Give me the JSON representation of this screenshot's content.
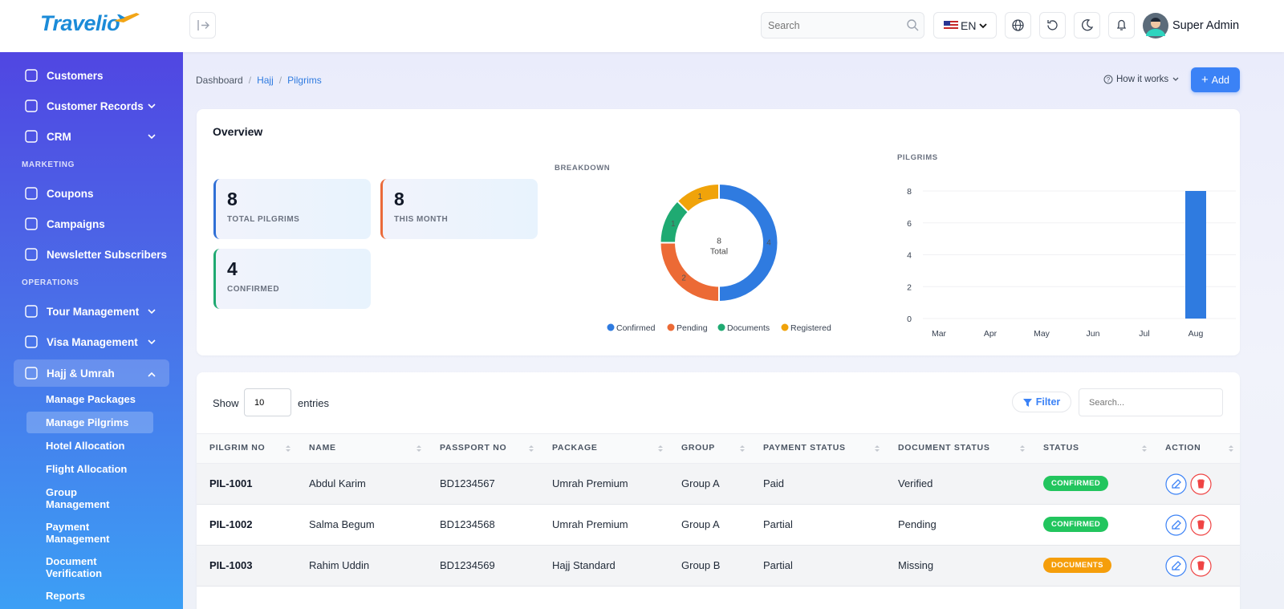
{
  "brand": "Travelio",
  "header": {
    "search_placeholder": "Search",
    "language": "EN",
    "user": "Super Admin"
  },
  "sidebar": {
    "groups": [
      {
        "items": [
          {
            "label": "Customers"
          },
          {
            "label": "Customer Records",
            "expandable": true
          },
          {
            "label": "CRM",
            "expandable": true
          }
        ]
      },
      {
        "title": "MARKETING",
        "items": [
          {
            "label": "Coupons"
          },
          {
            "label": "Campaigns"
          },
          {
            "label": "Newsletter Subscribers"
          }
        ]
      },
      {
        "title": "OPERATIONS",
        "items": [
          {
            "label": "Tour Management",
            "expandable": true
          },
          {
            "label": "Visa Management",
            "expandable": true
          },
          {
            "label": "Hajj & Umrah",
            "expandable": true,
            "expanded": true,
            "active": true,
            "children": [
              {
                "label": "Manage Packages"
              },
              {
                "label": "Manage Pilgrims",
                "active": true
              },
              {
                "label": "Hotel Allocation"
              },
              {
                "label": "Flight Allocation"
              },
              {
                "label": "Group Management"
              },
              {
                "label": "Payment Management"
              },
              {
                "label": "Document Verification"
              },
              {
                "label": "Reports"
              }
            ]
          }
        ]
      }
    ]
  },
  "breadcrumb": [
    "Dashboard",
    "Hajj",
    "Pilgrims"
  ],
  "actions": {
    "help": "How it works",
    "add": "Add"
  },
  "overview": {
    "title": "Overview",
    "stats": [
      {
        "value": 8,
        "label": "TOTAL PILGRIMS",
        "color": "#2f6fd6"
      },
      {
        "value": 8,
        "label": "THIS MONTH",
        "color": "#ea6a3a"
      },
      {
        "value": 4,
        "label": "CONFIRMED",
        "color": "#1fa971"
      }
    ]
  },
  "chart_data": [
    {
      "type": "donut",
      "title": "BREAKDOWN",
      "total": 8,
      "total_label": "Total",
      "categories": [
        "Confirmed",
        "Pending",
        "Documents",
        "Registered"
      ],
      "values": [
        4,
        2,
        1,
        1
      ],
      "colors": [
        "#2f7be0",
        "#ec6a35",
        "#1faa72",
        "#f0a30a"
      ]
    },
    {
      "type": "bar",
      "title": "PILGRIMS",
      "categories": [
        "Mar",
        "Apr",
        "May",
        "Jun",
        "Jul",
        "Aug"
      ],
      "values": [
        0,
        0,
        0,
        0,
        0,
        8
      ],
      "color": "#2f7be0",
      "ylim": [
        0,
        8
      ],
      "yticks": [
        0,
        2,
        4,
        6,
        8
      ],
      "grid": true
    }
  ],
  "table": {
    "show": "Show",
    "page_size": 10,
    "entries": "entries",
    "filter": "Filter",
    "search_placeholder": "Search...",
    "columns": [
      "PILGRIM NO",
      "NAME",
      "PASSPORT NO",
      "PACKAGE",
      "GROUP",
      "PAYMENT STATUS",
      "DOCUMENT STATUS",
      "STATUS",
      "ACTION"
    ],
    "rows": [
      {
        "cells": [
          "PIL-1001",
          "Abdul Karim",
          "BD1234567",
          "Umrah Premium",
          "Group A",
          "Paid",
          "Verified"
        ],
        "status": {
          "label": "CONFIRMED",
          "color": "#22c55e"
        }
      },
      {
        "cells": [
          "PIL-1002",
          "Salma Begum",
          "BD1234568",
          "Umrah Premium",
          "Group A",
          "Partial",
          "Pending"
        ],
        "status": {
          "label": "CONFIRMED",
          "color": "#22c55e"
        }
      },
      {
        "cells": [
          "PIL-1003",
          "Rahim Uddin",
          "BD1234569",
          "Hajj Standard",
          "Group B",
          "Partial",
          "Missing"
        ],
        "status": {
          "label": "DOCUMENTS",
          "color": "#f59e0b"
        }
      }
    ]
  }
}
